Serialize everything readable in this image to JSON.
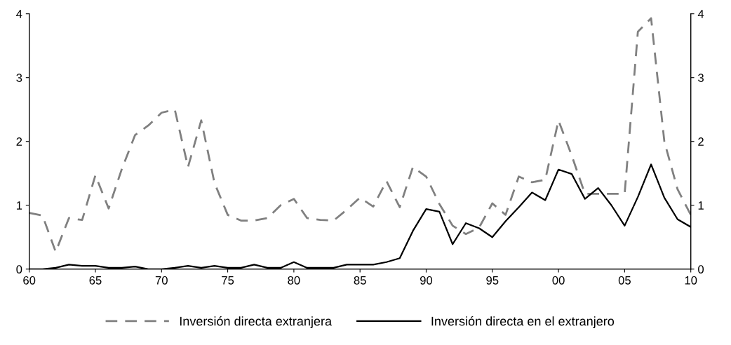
{
  "chart_data": {
    "type": "line",
    "x": [
      1960,
      1961,
      1962,
      1963,
      1964,
      1965,
      1966,
      1967,
      1968,
      1969,
      1970,
      1971,
      1972,
      1973,
      1974,
      1975,
      1976,
      1977,
      1978,
      1979,
      1980,
      1981,
      1982,
      1983,
      1984,
      1985,
      1986,
      1987,
      1988,
      1989,
      1990,
      1991,
      1992,
      1993,
      1994,
      1995,
      1996,
      1997,
      1998,
      1999,
      2000,
      2001,
      2002,
      2003,
      2004,
      2005,
      2006,
      2007,
      2008,
      2009,
      2010
    ],
    "series": [
      {
        "name": "Inversión directa extranjera",
        "color": "#808080",
        "line_style": "dashed",
        "values": [
          0.88,
          0.84,
          0.27,
          0.8,
          0.77,
          1.47,
          0.95,
          1.57,
          2.1,
          2.25,
          2.45,
          2.5,
          1.6,
          2.33,
          1.35,
          0.85,
          0.76,
          0.76,
          0.8,
          1.0,
          1.1,
          0.8,
          0.77,
          0.76,
          0.93,
          1.12,
          0.98,
          1.38,
          0.97,
          1.6,
          1.45,
          1.02,
          0.68,
          0.55,
          0.65,
          1.03,
          0.85,
          1.45,
          1.36,
          1.4,
          2.33,
          1.78,
          1.18,
          1.18,
          1.18,
          1.18,
          3.72,
          3.93,
          2.0,
          1.25,
          0.85
        ]
      },
      {
        "name": "Inversión directa en el extranjero",
        "color": "#000000",
        "line_style": "solid",
        "values": [
          0,
          0,
          0.02,
          0.07,
          0.05,
          0.05,
          0.02,
          0.02,
          0.04,
          0,
          0,
          0.02,
          0.05,
          0.02,
          0.05,
          0.02,
          0.02,
          0.07,
          0.02,
          0.02,
          0.11,
          0.02,
          0.02,
          0.02,
          0.07,
          0.07,
          0.07,
          0.11,
          0.17,
          0.6,
          0.94,
          0.9,
          0.39,
          0.72,
          0.64,
          0.5,
          0.75,
          0.97,
          1.2,
          1.08,
          1.56,
          1.49,
          1.1,
          1.27,
          1.0,
          0.68,
          1.13,
          1.64,
          1.12,
          0.78,
          0.66
        ]
      }
    ],
    "xlim": [
      1960,
      2010
    ],
    "xticks": [
      {
        "value": 1960,
        "label": "60"
      },
      {
        "value": 1965,
        "label": "65"
      },
      {
        "value": 1970,
        "label": "70"
      },
      {
        "value": 1975,
        "label": "75"
      },
      {
        "value": 1980,
        "label": "80"
      },
      {
        "value": 1985,
        "label": "85"
      },
      {
        "value": 1990,
        "label": "90"
      },
      {
        "value": 1995,
        "label": "95"
      },
      {
        "value": 2000,
        "label": "00"
      },
      {
        "value": 2005,
        "label": "05"
      },
      {
        "value": 2010,
        "label": "10"
      }
    ],
    "ylim": [
      0,
      4
    ],
    "yticks": [
      0,
      1,
      2,
      3,
      4
    ],
    "y2lim": [
      0,
      4
    ],
    "y2ticks": [
      0,
      1,
      2,
      3,
      4
    ],
    "grid": false,
    "legend": "bottom",
    "marker": "none"
  }
}
